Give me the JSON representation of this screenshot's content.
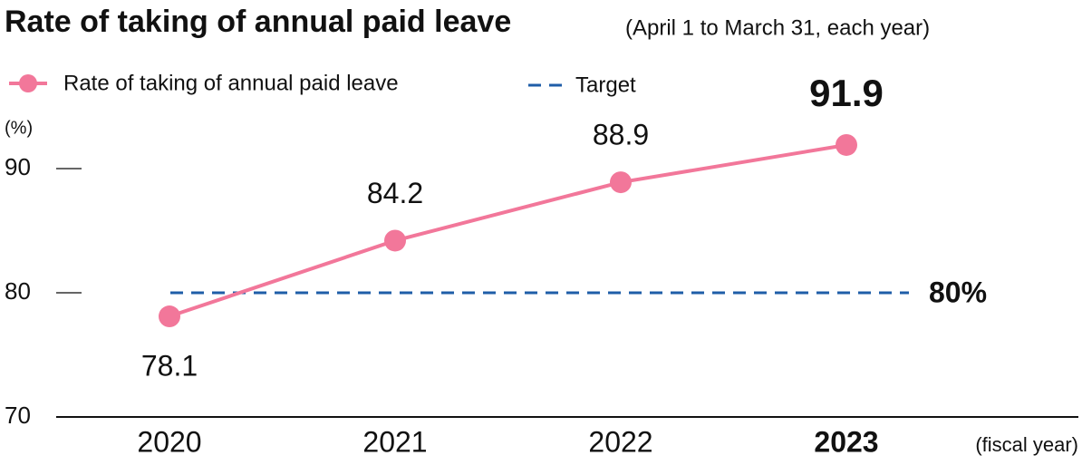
{
  "chart_data": {
    "type": "line",
    "title": "Rate of taking of annual paid leave",
    "subtitle": "(April 1 to March 31, each year)",
    "y_label": "(%)",
    "x_label": "(fiscal year)",
    "categories": [
      "2020",
      "2021",
      "2022",
      "2023"
    ],
    "series": [
      {
        "name": "Rate of taking of annual paid leave",
        "color": "#f2779a",
        "values": [
          78.1,
          84.2,
          88.9,
          91.9
        ]
      }
    ],
    "target": {
      "name": "Target",
      "value": 80,
      "label": "80%",
      "color": "#1f5ea8"
    },
    "ylim": [
      70,
      95
    ],
    "yticks": [
      70,
      80,
      90
    ]
  }
}
